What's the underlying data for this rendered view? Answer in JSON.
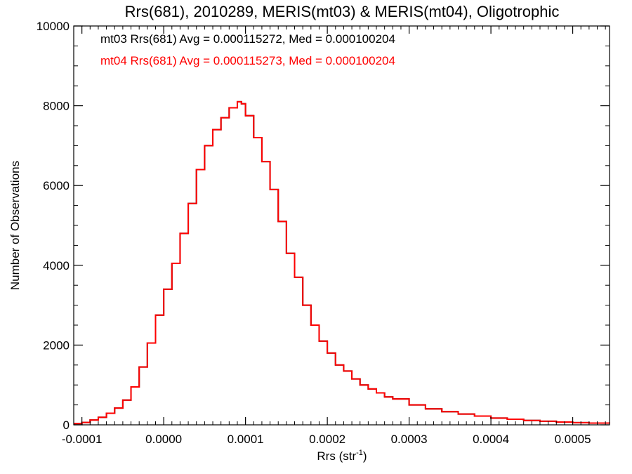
{
  "chart_data": {
    "type": "line",
    "title": "Rrs(681), 2010289, MERIS(mt03) & MERIS(mt04), Oligotrophic",
    "xlabel": "Rrs (str",
    "xlabel_sup": "-1",
    "xlabel_end": ")",
    "ylabel": "Number of Observations",
    "xlim": [
      -0.00011,
      0.000545
    ],
    "ylim": [
      0,
      10000
    ],
    "x_ticks": [
      -0.0001,
      0.0,
      0.0001,
      0.0002,
      0.0003,
      0.0004,
      0.0005
    ],
    "x_tick_labels": [
      "-0.0001",
      "0.0000",
      "0.0001",
      "0.0002",
      "0.0003",
      "0.0004",
      "0.0005"
    ],
    "y_ticks": [
      0,
      2000,
      4000,
      6000,
      8000,
      10000
    ],
    "y_tick_labels": [
      "0",
      "2000",
      "4000",
      "6000",
      "8000",
      "10000"
    ],
    "grid": false,
    "annotations": [
      {
        "text": "mt03 Rrs(681) Avg = 0.000115272, Med = 0.000100204",
        "color": "#000000"
      },
      {
        "text": "mt04 Rrs(681) Avg = 0.000115273, Med = 0.000100204",
        "color": "#ff0000"
      }
    ],
    "series": [
      {
        "color": "#000000",
        "x": [
          -0.00011,
          -0.0001,
          -9e-05,
          -8e-05,
          -7e-05,
          -6e-05,
          -5e-05,
          -4e-05,
          -3e-05,
          -2e-05,
          -1e-05,
          0.0,
          1e-05,
          2e-05,
          3e-05,
          4e-05,
          5e-05,
          6e-05,
          7e-05,
          8e-05,
          9e-05,
          9.5e-05,
          0.0001,
          0.00011,
          0.00012,
          0.00013,
          0.00014,
          0.00015,
          0.00016,
          0.00017,
          0.00018,
          0.00019,
          0.0002,
          0.00021,
          0.00022,
          0.00023,
          0.00024,
          0.00025,
          0.00026,
          0.00027,
          0.00028,
          0.0003,
          0.00032,
          0.00034,
          0.00036,
          0.00038,
          0.0004,
          0.00042,
          0.00044,
          0.00046,
          0.00048,
          0.0005,
          0.00052,
          0.000545
        ],
        "y": [
          30,
          60,
          120,
          190,
          290,
          420,
          620,
          950,
          1450,
          2050,
          2750,
          3400,
          4050,
          4800,
          5550,
          6400,
          7000,
          7400,
          7700,
          7950,
          8100,
          8050,
          7750,
          7200,
          6600,
          5900,
          5100,
          4300,
          3700,
          3000,
          2500,
          2100,
          1800,
          1500,
          1350,
          1150,
          1000,
          900,
          800,
          700,
          650,
          500,
          400,
          330,
          270,
          220,
          170,
          140,
          110,
          90,
          70,
          55,
          45,
          35
        ]
      },
      {
        "color": "#ff0000",
        "x": [
          -0.00011,
          -0.0001,
          -9e-05,
          -8e-05,
          -7e-05,
          -6e-05,
          -5e-05,
          -4e-05,
          -3e-05,
          -2e-05,
          -1e-05,
          0.0,
          1e-05,
          2e-05,
          3e-05,
          4e-05,
          5e-05,
          6e-05,
          7e-05,
          8e-05,
          9e-05,
          9.5e-05,
          0.0001,
          0.00011,
          0.00012,
          0.00013,
          0.00014,
          0.00015,
          0.00016,
          0.00017,
          0.00018,
          0.00019,
          0.0002,
          0.00021,
          0.00022,
          0.00023,
          0.00024,
          0.00025,
          0.00026,
          0.00027,
          0.00028,
          0.0003,
          0.00032,
          0.00034,
          0.00036,
          0.00038,
          0.0004,
          0.00042,
          0.00044,
          0.00046,
          0.00048,
          0.0005,
          0.00052,
          0.000545
        ],
        "y": [
          30,
          60,
          120,
          190,
          290,
          420,
          620,
          950,
          1450,
          2050,
          2750,
          3400,
          4050,
          4800,
          5550,
          6400,
          7000,
          7400,
          7700,
          7950,
          8100,
          8050,
          7750,
          7200,
          6600,
          5900,
          5100,
          4300,
          3700,
          3000,
          2500,
          2100,
          1800,
          1500,
          1350,
          1150,
          1000,
          900,
          800,
          700,
          650,
          500,
          400,
          330,
          270,
          220,
          170,
          140,
          110,
          90,
          70,
          55,
          45,
          35
        ]
      }
    ]
  }
}
